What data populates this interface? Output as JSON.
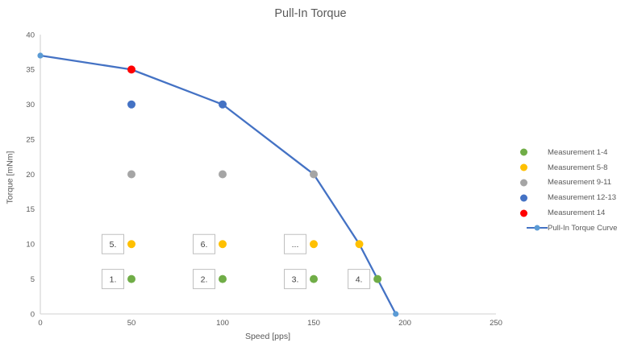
{
  "chart_data": {
    "type": "scatter",
    "title": "Pull-In Torque",
    "xlabel": "Speed [pps]",
    "ylabel": "Torque [mNm]",
    "xlim": [
      0,
      250
    ],
    "ylim": [
      0,
      40
    ],
    "x_ticks": [
      0,
      50,
      100,
      150,
      200,
      250
    ],
    "y_ticks": [
      0,
      5,
      10,
      15,
      20,
      25,
      30,
      35,
      40
    ],
    "grid": false,
    "legend_position": "right",
    "series": [
      {
        "name": "Measurement 1-4",
        "type": "scatter",
        "color": "#70AD47",
        "points": [
          [
            50,
            5
          ],
          [
            100,
            5
          ],
          [
            150,
            5
          ],
          [
            185,
            5
          ]
        ]
      },
      {
        "name": "Measurement 5-8",
        "type": "scatter",
        "color": "#FFC000",
        "points": [
          [
            50,
            10
          ],
          [
            100,
            10
          ],
          [
            150,
            10
          ],
          [
            175,
            10
          ]
        ]
      },
      {
        "name": "Measurement 9-11",
        "type": "scatter",
        "color": "#A5A5A5",
        "points": [
          [
            50,
            20
          ],
          [
            100,
            20
          ],
          [
            150,
            20
          ]
        ]
      },
      {
        "name": "Measurement 12-13",
        "type": "scatter",
        "color": "#4472C4",
        "points": [
          [
            50,
            30
          ],
          [
            100,
            30
          ]
        ]
      },
      {
        "name": "Measurement 14",
        "type": "scatter",
        "color": "#FF0000",
        "points": [
          [
            50,
            35
          ]
        ]
      },
      {
        "name": "Pull-In Torque Curve",
        "type": "line",
        "color": "#4472C4",
        "marker_color": "#5B9BD5",
        "points": [
          [
            0,
            37
          ],
          [
            50,
            35
          ],
          [
            100,
            30
          ],
          [
            150,
            20
          ],
          [
            175,
            10
          ],
          [
            195,
            0
          ]
        ]
      }
    ],
    "annotations": [
      {
        "label": "1.",
        "x": 50,
        "y": 5
      },
      {
        "label": "2.",
        "x": 100,
        "y": 5
      },
      {
        "label": "3.",
        "x": 150,
        "y": 5
      },
      {
        "label": "4.",
        "x": 185,
        "y": 5
      },
      {
        "label": "5.",
        "x": 50,
        "y": 10
      },
      {
        "label": "6.",
        "x": 100,
        "y": 10
      },
      {
        "label": "...",
        "x": 150,
        "y": 10
      }
    ],
    "colors": {
      "axis_line": "#D9D9D9",
      "tick_text": "#595959",
      "annotation_border": "#BFBFBF",
      "annotation_text": "#404040"
    }
  }
}
